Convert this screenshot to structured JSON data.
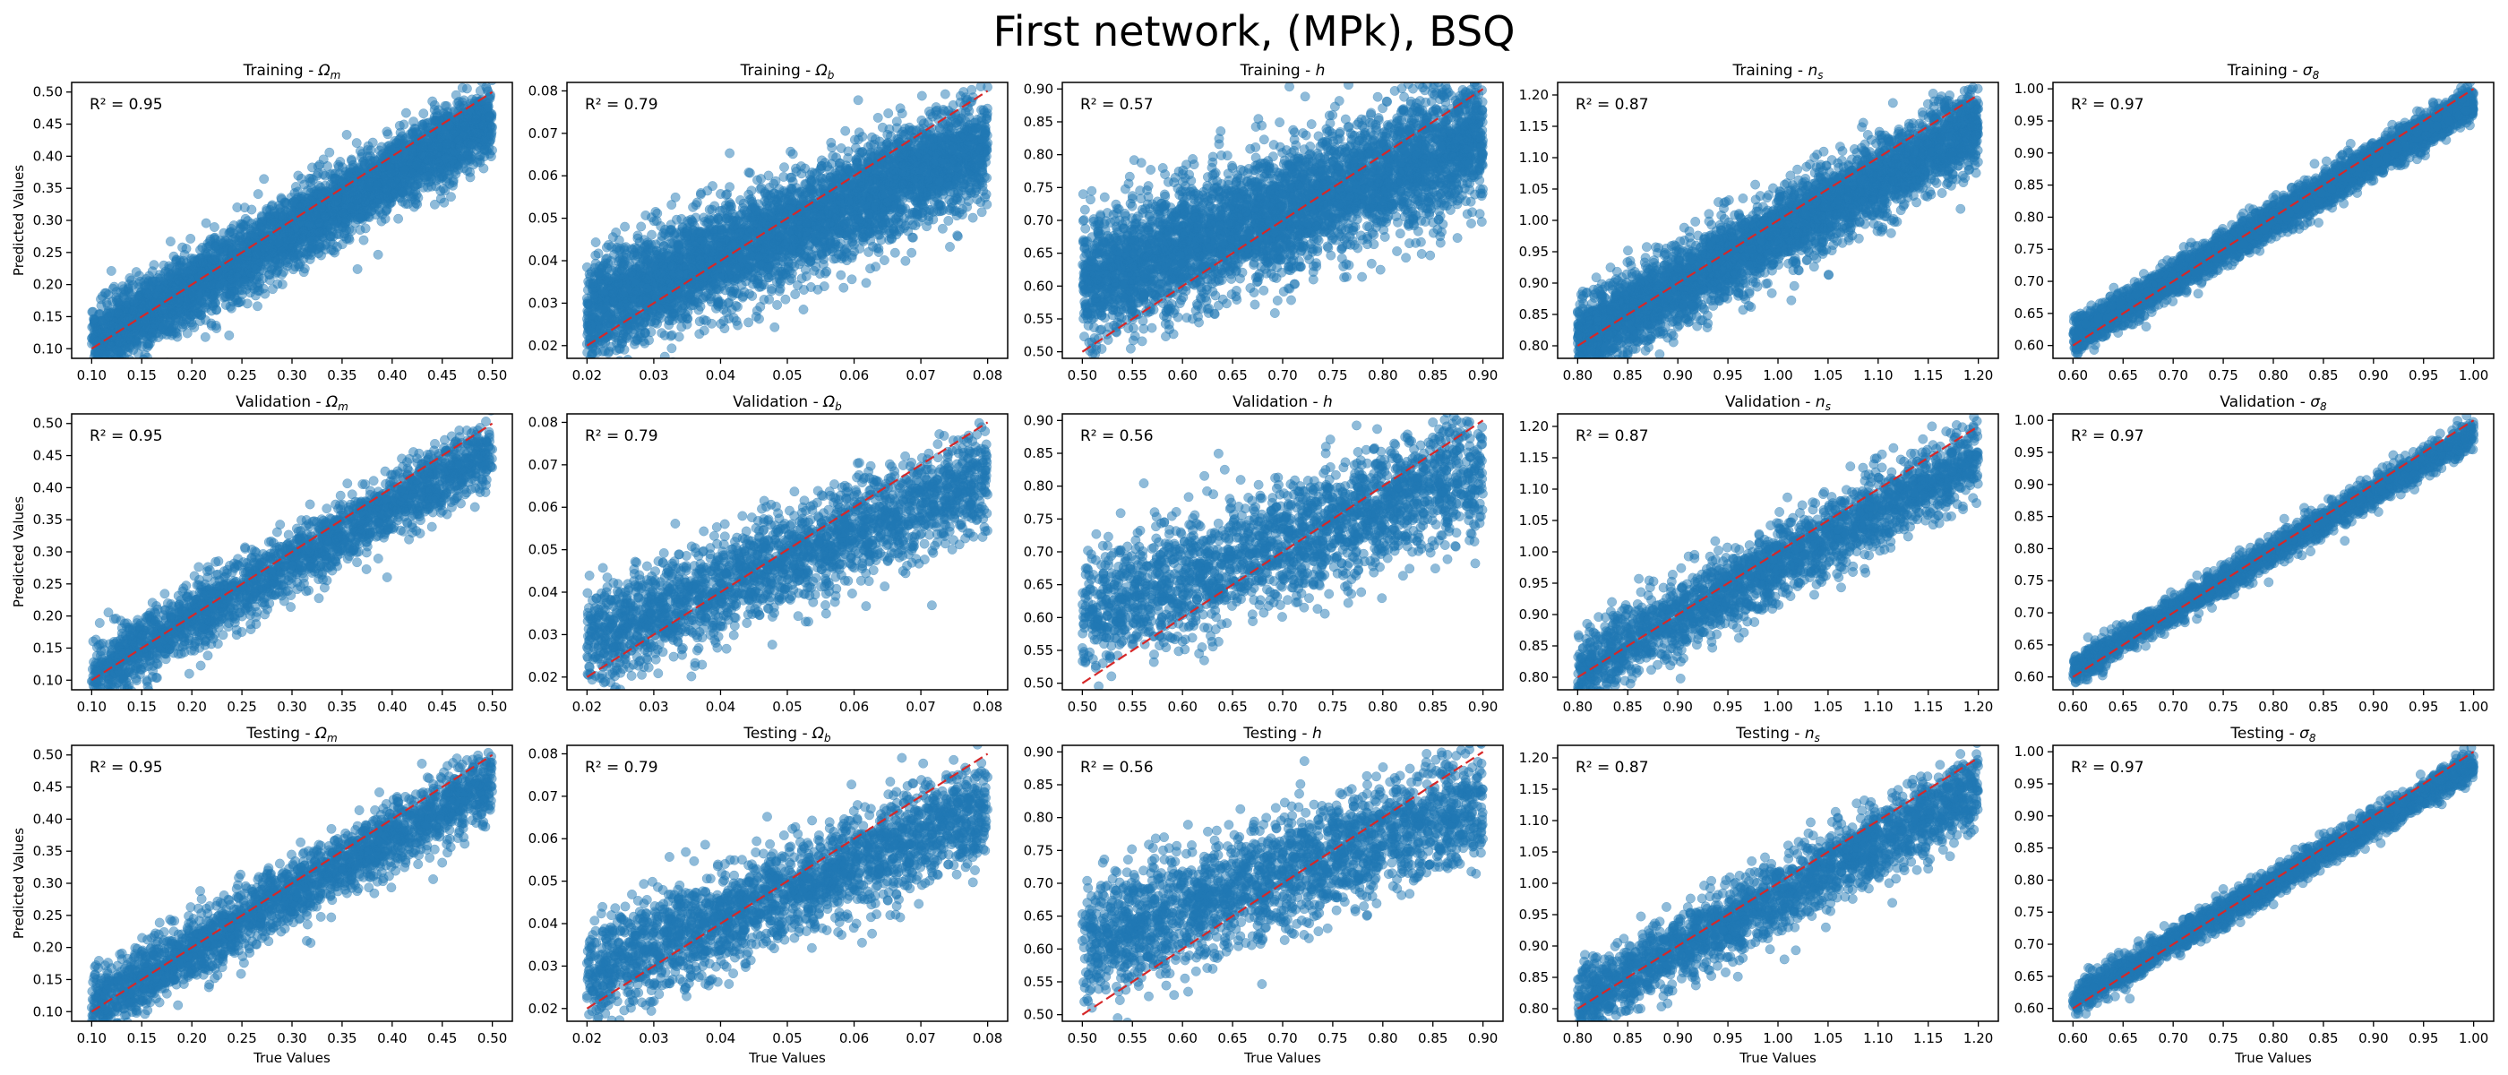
{
  "figure": {
    "suptitle": "First network, (MPk), BSQ",
    "xlabel": "True Values",
    "ylabel": "Predicted Values"
  },
  "style": {
    "point_color": "#1f77b4",
    "identity_line_color": "#d62728"
  },
  "chart_data": [
    {
      "type": "scatter",
      "title_prefix": "Training - ",
      "param": "Ω",
      "param_sub": "m",
      "annotation": "R² = 0.95",
      "r2": 0.95,
      "xlim": [
        0.08,
        0.52
      ],
      "ylim": [
        0.085,
        0.515
      ],
      "xticks": [
        0.1,
        0.15,
        0.2,
        0.25,
        0.3,
        0.35,
        0.4,
        0.45,
        0.5
      ],
      "yticks": [
        0.1,
        0.15,
        0.2,
        0.25,
        0.3,
        0.35,
        0.4,
        0.45,
        0.5
      ],
      "tick_decimals": 2,
      "x_range": [
        0.1,
        0.5
      ],
      "fit": {
        "intercept": 0.02,
        "slope": 0.88,
        "spread": 0.028
      },
      "identity_line": [
        [
          0.1,
          0.1
        ],
        [
          0.5,
          0.5
        ]
      ],
      "points_approx": 4200
    },
    {
      "type": "scatter",
      "title_prefix": "Training - ",
      "param": "Ω",
      "param_sub": "b",
      "annotation": "R² = 0.79",
      "r2": 0.79,
      "xlim": [
        0.017,
        0.083
      ],
      "ylim": [
        0.017,
        0.082
      ],
      "xticks": [
        0.02,
        0.03,
        0.04,
        0.05,
        0.06,
        0.07,
        0.08
      ],
      "yticks": [
        0.02,
        0.03,
        0.04,
        0.05,
        0.06,
        0.07,
        0.08
      ],
      "tick_decimals": 2,
      "x_range": [
        0.02,
        0.08
      ],
      "fit": {
        "intercept": 0.015,
        "slope": 0.65,
        "spread": 0.0062
      },
      "identity_line": [
        [
          0.02,
          0.02
        ],
        [
          0.08,
          0.08
        ]
      ],
      "points_approx": 4200
    },
    {
      "type": "scatter",
      "title_prefix": "Training - ",
      "param": "h",
      "param_sub": "",
      "annotation": "R² = 0.57",
      "r2": 0.57,
      "xlim": [
        0.48,
        0.92
      ],
      "ylim": [
        0.49,
        0.91
      ],
      "xticks": [
        0.5,
        0.55,
        0.6,
        0.65,
        0.7,
        0.75,
        0.8,
        0.85,
        0.9
      ],
      "yticks": [
        0.5,
        0.55,
        0.6,
        0.65,
        0.7,
        0.75,
        0.8,
        0.85,
        0.9
      ],
      "tick_decimals": 2,
      "x_range": [
        0.5,
        0.9
      ],
      "fit": {
        "intercept": 0.33,
        "slope": 0.55,
        "spread": 0.048
      },
      "identity_line": [
        [
          0.5,
          0.5
        ],
        [
          0.9,
          0.9
        ]
      ],
      "points_approx": 4200
    },
    {
      "type": "scatter",
      "title_prefix": "Training - ",
      "param": "n",
      "param_sub": "s",
      "annotation": "R² = 0.87",
      "r2": 0.87,
      "xlim": [
        0.78,
        1.22
      ],
      "ylim": [
        0.78,
        1.22
      ],
      "xticks": [
        0.8,
        0.85,
        0.9,
        0.95,
        1.0,
        1.05,
        1.1,
        1.15,
        1.2
      ],
      "yticks": [
        0.8,
        0.85,
        0.9,
        0.95,
        1.0,
        1.05,
        1.1,
        1.15,
        1.2
      ],
      "tick_decimals": 2,
      "x_range": [
        0.8,
        1.2
      ],
      "fit": {
        "intercept": 0.13,
        "slope": 0.85,
        "spread": 0.032
      },
      "identity_line": [
        [
          0.8,
          0.8
        ],
        [
          1.2,
          1.2
        ]
      ],
      "points_approx": 4200
    },
    {
      "type": "scatter",
      "title_prefix": "Training - ",
      "param": "σ",
      "param_sub": "8",
      "annotation": "R² = 0.97",
      "r2": 0.97,
      "xlim": [
        0.58,
        1.02
      ],
      "ylim": [
        0.58,
        1.01
      ],
      "xticks": [
        0.6,
        0.65,
        0.7,
        0.75,
        0.8,
        0.85,
        0.9,
        0.95,
        1.0
      ],
      "yticks": [
        0.6,
        0.65,
        0.7,
        0.75,
        0.8,
        0.85,
        0.9,
        0.95,
        1.0
      ],
      "tick_decimals": 2,
      "x_range": [
        0.6,
        1.0
      ],
      "fit": {
        "intercept": 0.06,
        "slope": 0.92,
        "spread": 0.013
      },
      "identity_line": [
        [
          0.6,
          0.6
        ],
        [
          1.0,
          1.0
        ]
      ],
      "points_approx": 4200
    },
    {
      "type": "scatter",
      "title_prefix": "Validation - ",
      "param": "Ω",
      "param_sub": "m",
      "annotation": "R² = 0.95",
      "r2": 0.95,
      "xlim": [
        0.08,
        0.52
      ],
      "ylim": [
        0.085,
        0.515
      ],
      "xticks": [
        0.1,
        0.15,
        0.2,
        0.25,
        0.3,
        0.35,
        0.4,
        0.45,
        0.5
      ],
      "yticks": [
        0.1,
        0.15,
        0.2,
        0.25,
        0.3,
        0.35,
        0.4,
        0.45,
        0.5
      ],
      "tick_decimals": 2,
      "x_range": [
        0.1,
        0.5
      ],
      "fit": {
        "intercept": 0.02,
        "slope": 0.88,
        "spread": 0.026
      },
      "identity_line": [
        [
          0.1,
          0.1
        ],
        [
          0.5,
          0.5
        ]
      ],
      "points_approx": 2200
    },
    {
      "type": "scatter",
      "title_prefix": "Validation - ",
      "param": "Ω",
      "param_sub": "b",
      "annotation": "R² = 0.79",
      "r2": 0.79,
      "xlim": [
        0.017,
        0.083
      ],
      "ylim": [
        0.017,
        0.082
      ],
      "xticks": [
        0.02,
        0.03,
        0.04,
        0.05,
        0.06,
        0.07,
        0.08
      ],
      "yticks": [
        0.02,
        0.03,
        0.04,
        0.05,
        0.06,
        0.07,
        0.08
      ],
      "tick_decimals": 2,
      "x_range": [
        0.02,
        0.08
      ],
      "fit": {
        "intercept": 0.015,
        "slope": 0.65,
        "spread": 0.006
      },
      "identity_line": [
        [
          0.02,
          0.02
        ],
        [
          0.08,
          0.08
        ]
      ],
      "points_approx": 2200
    },
    {
      "type": "scatter",
      "title_prefix": "Validation - ",
      "param": "h",
      "param_sub": "",
      "annotation": "R² = 0.56",
      "r2": 0.56,
      "xlim": [
        0.48,
        0.92
      ],
      "ylim": [
        0.49,
        0.91
      ],
      "xticks": [
        0.5,
        0.55,
        0.6,
        0.65,
        0.7,
        0.75,
        0.8,
        0.85,
        0.9
      ],
      "yticks": [
        0.5,
        0.55,
        0.6,
        0.65,
        0.7,
        0.75,
        0.8,
        0.85,
        0.9
      ],
      "tick_decimals": 2,
      "x_range": [
        0.5,
        0.9
      ],
      "fit": {
        "intercept": 0.33,
        "slope": 0.55,
        "spread": 0.046
      },
      "identity_line": [
        [
          0.5,
          0.5
        ],
        [
          0.9,
          0.9
        ]
      ],
      "points_approx": 2200
    },
    {
      "type": "scatter",
      "title_prefix": "Validation - ",
      "param": "n",
      "param_sub": "s",
      "annotation": "R² = 0.87",
      "r2": 0.87,
      "xlim": [
        0.78,
        1.22
      ],
      "ylim": [
        0.78,
        1.22
      ],
      "xticks": [
        0.8,
        0.85,
        0.9,
        0.95,
        1.0,
        1.05,
        1.1,
        1.15,
        1.2
      ],
      "yticks": [
        0.8,
        0.85,
        0.9,
        0.95,
        1.0,
        1.05,
        1.1,
        1.15,
        1.2
      ],
      "tick_decimals": 2,
      "x_range": [
        0.8,
        1.2
      ],
      "fit": {
        "intercept": 0.13,
        "slope": 0.85,
        "spread": 0.03
      },
      "identity_line": [
        [
          0.8,
          0.8
        ],
        [
          1.2,
          1.2
        ]
      ],
      "points_approx": 2200
    },
    {
      "type": "scatter",
      "title_prefix": "Validation - ",
      "param": "σ",
      "param_sub": "8",
      "annotation": "R² = 0.97",
      "r2": 0.97,
      "xlim": [
        0.58,
        1.02
      ],
      "ylim": [
        0.58,
        1.01
      ],
      "xticks": [
        0.6,
        0.65,
        0.7,
        0.75,
        0.8,
        0.85,
        0.9,
        0.95,
        1.0
      ],
      "yticks": [
        0.6,
        0.65,
        0.7,
        0.75,
        0.8,
        0.85,
        0.9,
        0.95,
        1.0
      ],
      "tick_decimals": 2,
      "x_range": [
        0.6,
        1.0
      ],
      "fit": {
        "intercept": 0.06,
        "slope": 0.92,
        "spread": 0.012
      },
      "identity_line": [
        [
          0.6,
          0.6
        ],
        [
          1.0,
          1.0
        ]
      ],
      "points_approx": 2200
    },
    {
      "type": "scatter",
      "title_prefix": "Testing - ",
      "param": "Ω",
      "param_sub": "m",
      "annotation": "R² = 0.95",
      "r2": 0.95,
      "xlim": [
        0.08,
        0.52
      ],
      "ylim": [
        0.085,
        0.515
      ],
      "xticks": [
        0.1,
        0.15,
        0.2,
        0.25,
        0.3,
        0.35,
        0.4,
        0.45,
        0.5
      ],
      "yticks": [
        0.1,
        0.15,
        0.2,
        0.25,
        0.3,
        0.35,
        0.4,
        0.45,
        0.5
      ],
      "tick_decimals": 2,
      "x_range": [
        0.1,
        0.5
      ],
      "fit": {
        "intercept": 0.02,
        "slope": 0.88,
        "spread": 0.026
      },
      "identity_line": [
        [
          0.1,
          0.1
        ],
        [
          0.5,
          0.5
        ]
      ],
      "points_approx": 2200
    },
    {
      "type": "scatter",
      "title_prefix": "Testing - ",
      "param": "Ω",
      "param_sub": "b",
      "annotation": "R² = 0.79",
      "r2": 0.79,
      "xlim": [
        0.017,
        0.083
      ],
      "ylim": [
        0.017,
        0.082
      ],
      "xticks": [
        0.02,
        0.03,
        0.04,
        0.05,
        0.06,
        0.07,
        0.08
      ],
      "yticks": [
        0.02,
        0.03,
        0.04,
        0.05,
        0.06,
        0.07,
        0.08
      ],
      "tick_decimals": 2,
      "x_range": [
        0.02,
        0.08
      ],
      "fit": {
        "intercept": 0.015,
        "slope": 0.65,
        "spread": 0.006
      },
      "identity_line": [
        [
          0.02,
          0.02
        ],
        [
          0.08,
          0.08
        ]
      ],
      "points_approx": 2200
    },
    {
      "type": "scatter",
      "title_prefix": "Testing - ",
      "param": "h",
      "param_sub": "",
      "annotation": "R² = 0.56",
      "r2": 0.56,
      "xlim": [
        0.48,
        0.92
      ],
      "ylim": [
        0.49,
        0.91
      ],
      "xticks": [
        0.5,
        0.55,
        0.6,
        0.65,
        0.7,
        0.75,
        0.8,
        0.85,
        0.9
      ],
      "yticks": [
        0.5,
        0.55,
        0.6,
        0.65,
        0.7,
        0.75,
        0.8,
        0.85,
        0.9
      ],
      "tick_decimals": 2,
      "x_range": [
        0.5,
        0.9
      ],
      "fit": {
        "intercept": 0.33,
        "slope": 0.55,
        "spread": 0.046
      },
      "identity_line": [
        [
          0.5,
          0.5
        ],
        [
          0.9,
          0.9
        ]
      ],
      "points_approx": 2200
    },
    {
      "type": "scatter",
      "title_prefix": "Testing - ",
      "param": "n",
      "param_sub": "s",
      "annotation": "R² = 0.87",
      "r2": 0.87,
      "xlim": [
        0.78,
        1.22
      ],
      "ylim": [
        0.78,
        1.22
      ],
      "xticks": [
        0.8,
        0.85,
        0.9,
        0.95,
        1.0,
        1.05,
        1.1,
        1.15,
        1.2
      ],
      "yticks": [
        0.8,
        0.85,
        0.9,
        0.95,
        1.0,
        1.05,
        1.1,
        1.15,
        1.2
      ],
      "tick_decimals": 2,
      "x_range": [
        0.8,
        1.2
      ],
      "fit": {
        "intercept": 0.13,
        "slope": 0.85,
        "spread": 0.03
      },
      "identity_line": [
        [
          0.8,
          0.8
        ],
        [
          1.2,
          1.2
        ]
      ],
      "points_approx": 2200
    },
    {
      "type": "scatter",
      "title_prefix": "Testing - ",
      "param": "σ",
      "param_sub": "8",
      "annotation": "R² = 0.97",
      "r2": 0.97,
      "xlim": [
        0.58,
        1.02
      ],
      "ylim": [
        0.58,
        1.01
      ],
      "xticks": [
        0.6,
        0.65,
        0.7,
        0.75,
        0.8,
        0.85,
        0.9,
        0.95,
        1.0
      ],
      "yticks": [
        0.6,
        0.65,
        0.7,
        0.75,
        0.8,
        0.85,
        0.9,
        0.95,
        1.0
      ],
      "tick_decimals": 2,
      "x_range": [
        0.6,
        1.0
      ],
      "fit": {
        "intercept": 0.06,
        "slope": 0.92,
        "spread": 0.012
      },
      "identity_line": [
        [
          0.6,
          0.6
        ],
        [
          1.0,
          1.0
        ]
      ],
      "points_approx": 2200
    }
  ]
}
